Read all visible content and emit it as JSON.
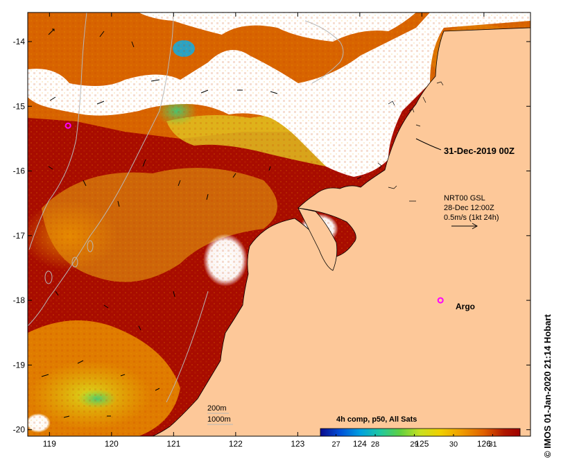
{
  "map": {
    "x_ticks": [
      "119",
      "120",
      "121",
      "122",
      "123",
      "124",
      "125",
      "126"
    ],
    "y_ticks": [
      "-14",
      "-15",
      "-16",
      "-17",
      "-18",
      "-19",
      "-20"
    ],
    "x_range": [
      118.65,
      126.75
    ],
    "y_range": [
      -20.1,
      -13.55
    ]
  },
  "annotations": {
    "date_label": "31-Dec-2019 00Z",
    "current_line1": "NRT00 GSL",
    "current_line2": "28-Dec 12:00Z",
    "current_line3": "0.5m/s (1kt 24h)",
    "argo_label": "Argo",
    "depth_label_1": "200m",
    "depth_label_2": "1000m",
    "credit": "© IMOS 01-Jan-2020 21:14 Hobart"
  },
  "argo_floats": [
    {
      "lon": 119.3,
      "lat": -15.3
    },
    {
      "lon": 125.3,
      "lat": -18.0
    }
  ],
  "colorbar": {
    "title": "4h comp, p50, All Sats",
    "ticks": [
      "27",
      "28",
      "29",
      "30",
      "31"
    ],
    "tick_values": [
      27,
      28,
      29,
      30,
      31
    ],
    "range": [
      26.6,
      31.7
    ],
    "colors": [
      "#0a0a8c",
      "#0050d8",
      "#00a0e0",
      "#20c8a0",
      "#60d040",
      "#c8e020",
      "#f0d000",
      "#f0a000",
      "#e06000",
      "#b01800",
      "#a00000"
    ]
  },
  "colors": {
    "land": "#fdc899",
    "warm_sst": "#a80c00",
    "mid_sst": "#d86400",
    "cloud": "#ffffff",
    "argo": "#ff00ff",
    "bathymetry": "#b8b8b8"
  }
}
